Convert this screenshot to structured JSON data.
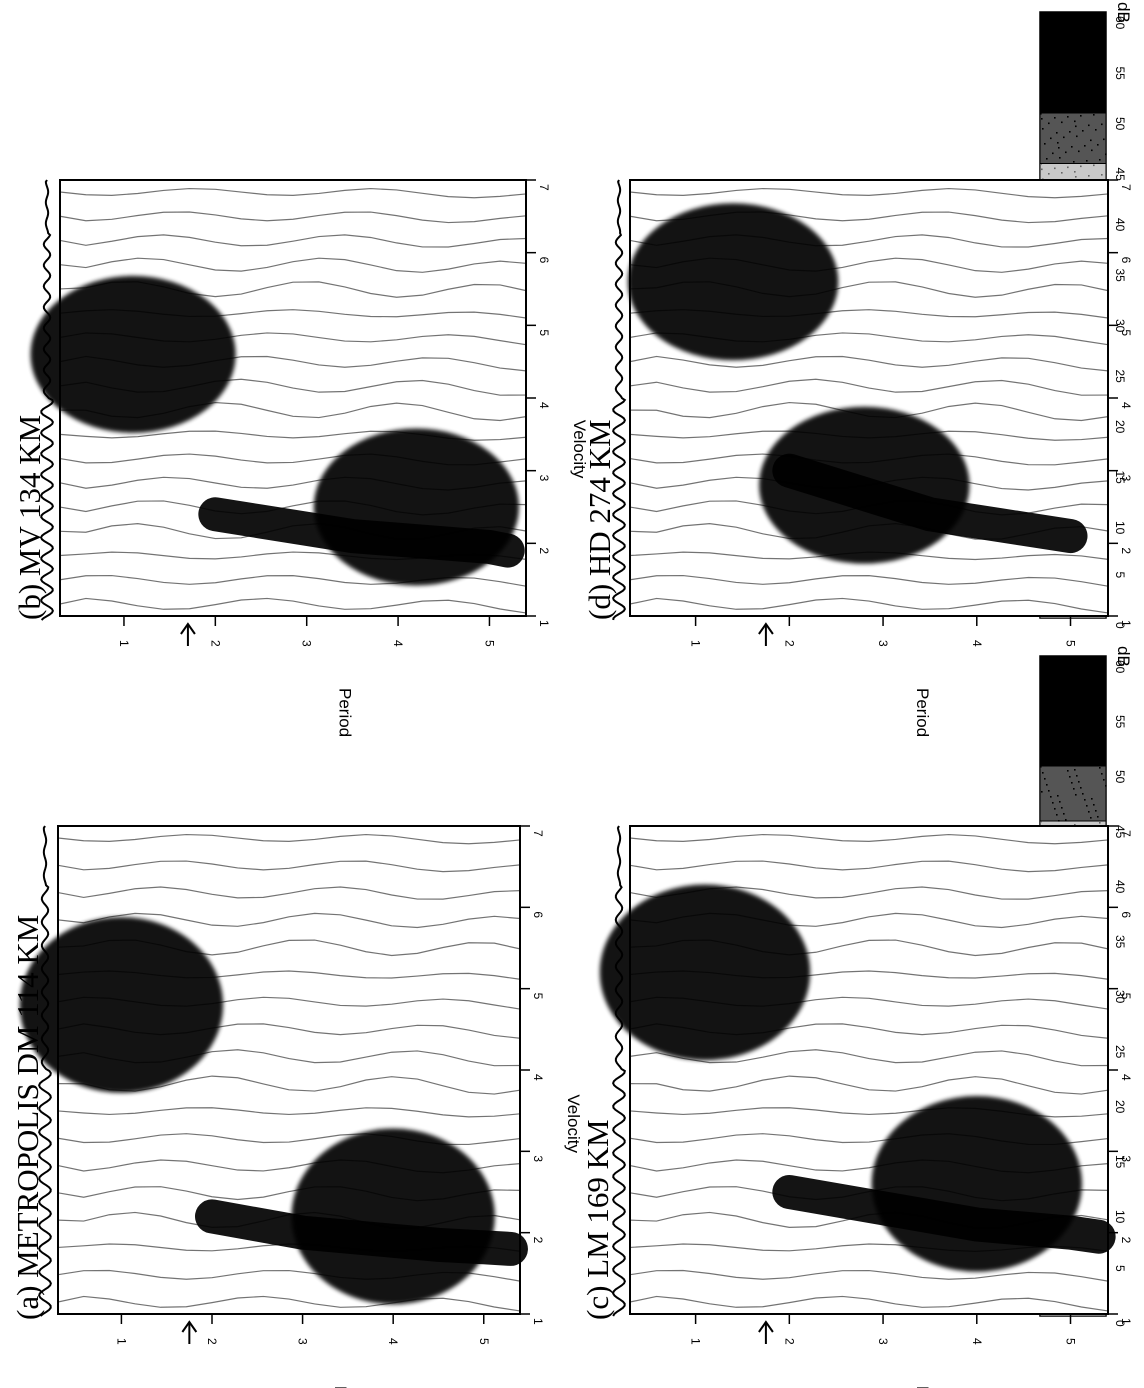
{
  "chart_data": [
    {
      "type": "heatmap",
      "panel": "a",
      "title": "(a) METROPOLIS DM 114 KM",
      "xlabel": "Period",
      "ylabel": "Velocity",
      "x_ticks": [
        "1",
        "2",
        "3",
        "4",
        "5"
      ],
      "y_ticks": [
        "1",
        "2",
        "3",
        "4",
        "5",
        "6",
        "7"
      ],
      "xlim": [
        0.3,
        5.4
      ],
      "ylim": [
        1,
        7
      ],
      "arrow_at_period": 1.75,
      "dispersion_ridge": [
        [
          2.0,
          2.2
        ],
        [
          2.5,
          2.1
        ],
        [
          3.0,
          2.0
        ],
        [
          3.5,
          1.95
        ],
        [
          4.0,
          1.9
        ],
        [
          4.5,
          1.85
        ],
        [
          5.0,
          1.82
        ],
        [
          5.3,
          1.8
        ]
      ],
      "high_energy_zones": [
        {
          "period_center": 1.0,
          "velocity_center": 4.8,
          "label": "dark"
        },
        {
          "period_center": 4.0,
          "velocity_center": 2.2,
          "label": "dark"
        }
      ],
      "grid": false
    },
    {
      "type": "heatmap",
      "panel": "b",
      "title": "(b) MV 134 KM",
      "xlabel": "Period",
      "ylabel": "Velocity",
      "x_ticks": [
        "1",
        "2",
        "3",
        "4",
        "5"
      ],
      "y_ticks": [
        "1",
        "2",
        "3",
        "4",
        "5",
        "6",
        "7"
      ],
      "xlim": [
        0.3,
        5.4
      ],
      "ylim": [
        1,
        7
      ],
      "arrow_at_period": 1.7,
      "dispersion_ridge": [
        [
          2.0,
          2.4
        ],
        [
          2.5,
          2.3
        ],
        [
          3.0,
          2.2
        ],
        [
          3.5,
          2.1
        ],
        [
          4.0,
          2.05
        ],
        [
          4.5,
          2.0
        ],
        [
          5.0,
          1.95
        ],
        [
          5.2,
          1.9
        ]
      ],
      "high_energy_zones": [
        {
          "period_center": 1.1,
          "velocity_center": 4.6,
          "label": "dark"
        },
        {
          "period_center": 4.2,
          "velocity_center": 2.5,
          "label": "dark"
        }
      ],
      "grid": false
    },
    {
      "type": "heatmap",
      "panel": "c",
      "title": "(c) LM 169 KM",
      "xlabel": "Period",
      "ylabel": "Velocity",
      "x_ticks": [
        "1",
        "2",
        "3",
        "4",
        "5"
      ],
      "y_ticks": [
        "1",
        "2",
        "3",
        "4",
        "5",
        "6",
        "7"
      ],
      "xlim": [
        0.3,
        5.4
      ],
      "ylim": [
        1,
        7
      ],
      "arrow_at_period": 1.75,
      "dispersion_ridge": [
        [
          2.0,
          2.5
        ],
        [
          2.5,
          2.4
        ],
        [
          3.0,
          2.3
        ],
        [
          3.5,
          2.2
        ],
        [
          4.0,
          2.1
        ],
        [
          4.5,
          2.05
        ],
        [
          5.0,
          2.0
        ],
        [
          5.3,
          1.95
        ]
      ],
      "high_energy_zones": [
        {
          "period_center": 1.1,
          "velocity_center": 5.2,
          "label": "dark"
        },
        {
          "period_center": 4.0,
          "velocity_center": 2.6,
          "label": "dark"
        }
      ],
      "grid": false
    },
    {
      "type": "heatmap",
      "panel": "d",
      "title": "(d) HD 274 KM",
      "xlabel": "Period",
      "ylabel": "Velocity",
      "x_ticks": [
        "1",
        "2",
        "3",
        "4",
        "5"
      ],
      "y_ticks": [
        "1",
        "2",
        "3",
        "4",
        "5",
        "6",
        "7"
      ],
      "xlim": [
        0.3,
        5.4
      ],
      "ylim": [
        1,
        7
      ],
      "arrow_at_period": 1.75,
      "dispersion_ridge": [
        [
          2.0,
          3.0
        ],
        [
          2.5,
          2.8
        ],
        [
          3.0,
          2.6
        ],
        [
          3.5,
          2.4
        ],
        [
          4.0,
          2.3
        ],
        [
          4.5,
          2.2
        ],
        [
          5.0,
          2.1
        ]
      ],
      "high_energy_zones": [
        {
          "period_center": 1.4,
          "velocity_center": 5.6,
          "label": "dark"
        },
        {
          "period_center": 2.8,
          "velocity_center": 2.8,
          "label": "dark"
        }
      ],
      "grid": false
    }
  ],
  "colorbar": {
    "unit": "dB",
    "ticks": [
      "0",
      "5",
      "10",
      "15",
      "20",
      "25",
      "30",
      "35",
      "40",
      "45",
      "50",
      "55",
      "60"
    ],
    "shade_by_bin": [
      {
        "from": 0,
        "to": 40,
        "shade": "#ffffff"
      },
      {
        "from": 40,
        "to": 45,
        "shade": "#c9c9c9"
      },
      {
        "from": 45,
        "to": 50,
        "shade": "#555555"
      },
      {
        "from": 50,
        "to": 60,
        "shade": "#000000"
      }
    ]
  }
}
